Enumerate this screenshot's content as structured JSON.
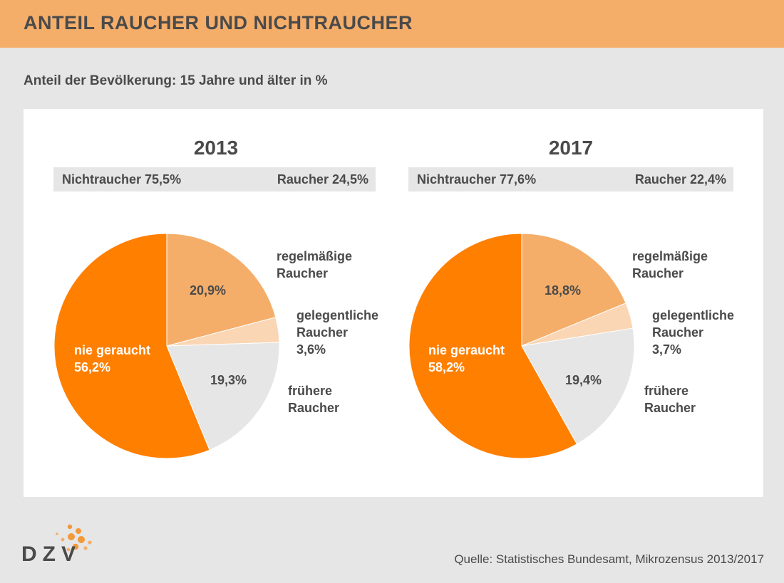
{
  "header": {
    "title": "ANTEIL RAUCHER UND NICHTRAUCHER"
  },
  "subtitle": "Anteil der Bevölkerung: 15 Jahre und älter in %",
  "source": "Quelle: Statistisches Bundesamt, Mikrozensus 2013/2017",
  "logo": {
    "text": "DZV"
  },
  "colors": {
    "nie_geraucht": "#ff7f00",
    "regelmaessige": "#f5ae6a",
    "gelegentliche": "#fad6b4",
    "fruehere": "#e6e6e6",
    "header": "#f5ae6a",
    "logo_dot": "#f29a3a"
  },
  "charts": [
    {
      "year": "2013",
      "summary": {
        "left": "Nichtraucher 75,5%",
        "right": "Raucher 24,5%"
      },
      "labels": {
        "regelmaessige_name_1": "regelmäßige",
        "regelmaessige_name_2": "Raucher",
        "regelmaessige_value": "20,9%",
        "gelegentliche_name_1": "gelegentliche",
        "gelegentliche_name_2": "Raucher",
        "gelegentliche_value": "3,6%",
        "fruehere_value": "19,3%",
        "fruehere_name_1": "frühere",
        "fruehere_name_2": "Raucher",
        "nie_name": "nie geraucht",
        "nie_value": "56,2%"
      }
    },
    {
      "year": "2017",
      "summary": {
        "left": "Nichtraucher 77,6%",
        "right": "Raucher 22,4%"
      },
      "labels": {
        "regelmaessige_name_1": "regelmäßige",
        "regelmaessige_name_2": "Raucher",
        "regelmaessige_value": "18,8%",
        "gelegentliche_name_1": "gelegentliche",
        "gelegentliche_name_2": "Raucher",
        "gelegentliche_value": "3,7%",
        "fruehere_value": "19,4%",
        "fruehere_name_1": "frühere",
        "fruehere_name_2": "Raucher",
        "nie_name": "nie geraucht",
        "nie_value": "58,2%"
      }
    }
  ],
  "chart_data": [
    {
      "type": "pie",
      "title": "2013",
      "categories": [
        "regelmäßige Raucher",
        "gelegentliche Raucher",
        "frühere Raucher",
        "nie geraucht"
      ],
      "values": [
        20.9,
        3.6,
        19.3,
        56.2
      ]
    },
    {
      "type": "pie",
      "title": "2017",
      "categories": [
        "regelmäßige Raucher",
        "gelegentliche Raucher",
        "frühere Raucher",
        "nie geraucht"
      ],
      "values": [
        18.8,
        3.7,
        19.4,
        58.2
      ]
    }
  ]
}
